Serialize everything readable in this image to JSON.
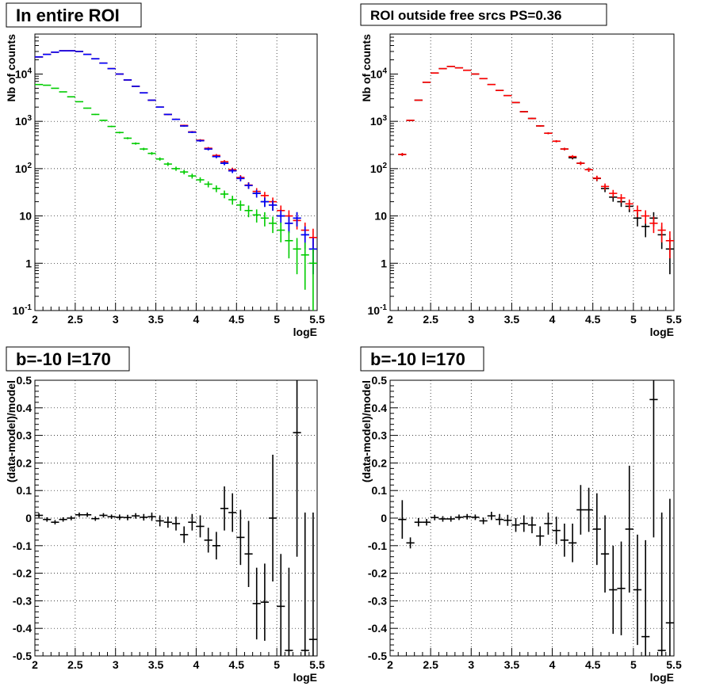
{
  "chart_data": [
    {
      "type": "scatter",
      "panel": "top-left",
      "title": "In entire ROI",
      "xlabel": "logE",
      "ylabel": "Nb of counts",
      "xlim": [
        2,
        5.5
      ],
      "ylim": [
        0.1,
        70000
      ],
      "log_y": true,
      "grid": true,
      "x_ticks": [
        "2",
        "2.5",
        "3",
        "3.5",
        "4",
        "4.5",
        "5",
        "5.5"
      ],
      "y_ticks": [
        "10^-1",
        "1",
        "10",
        "10^2",
        "10^3",
        "10^4"
      ],
      "x": [
        2.05,
        2.15,
        2.25,
        2.35,
        2.45,
        2.55,
        2.65,
        2.75,
        2.85,
        2.95,
        3.05,
        3.15,
        3.25,
        3.35,
        3.45,
        3.55,
        3.65,
        3.75,
        3.85,
        3.95,
        4.05,
        4.15,
        4.25,
        4.35,
        4.45,
        4.55,
        4.65,
        4.75,
        4.85,
        4.95,
        5.05,
        5.15,
        5.25,
        5.35,
        5.45
      ],
      "series": [
        {
          "color": "#000000",
          "values": [
            23000,
            26000,
            29000,
            31000,
            31000,
            30000,
            26000,
            21000,
            17000,
            13000,
            10000,
            7500,
            5500,
            4000,
            2800,
            2000,
            1400,
            1100,
            800,
            590,
            390,
            260,
            180,
            130,
            90,
            62,
            44,
            30,
            20,
            17,
            10,
            7,
            9,
            4,
            2
          ]
        },
        {
          "color": "#ff0000",
          "values": [
            23000,
            26000,
            29000,
            31000,
            31000,
            30000,
            26000,
            21000,
            17000,
            13000,
            10000,
            7500,
            5500,
            4000,
            2800,
            2000,
            1400,
            1100,
            820,
            600,
            400,
            270,
            190,
            140,
            95,
            65,
            45,
            33,
            27,
            20,
            13,
            10,
            8,
            5,
            3.5
          ]
        },
        {
          "color": "#0000ff",
          "values": [
            23000,
            26000,
            29000,
            31000,
            31000,
            30000,
            26000,
            21000,
            17000,
            13000,
            10000,
            7500,
            5500,
            4000,
            2800,
            2000,
            1400,
            1100,
            800,
            590,
            390,
            260,
            180,
            130,
            90,
            62,
            44,
            30,
            20,
            17,
            10,
            7,
            9,
            4,
            2
          ]
        },
        {
          "color": "#00cc00",
          "values": [
            6000,
            5800,
            5000,
            4200,
            3300,
            2600,
            1900,
            1400,
            1050,
            780,
            580,
            440,
            340,
            260,
            210,
            160,
            125,
            100,
            85,
            70,
            58,
            47,
            38,
            29,
            22,
            17,
            13,
            10.5,
            9,
            7,
            5,
            3,
            2,
            1.5,
            1
          ]
        }
      ]
    },
    {
      "type": "scatter",
      "panel": "top-right",
      "title": "ROI outside free srcs PS=0.36",
      "xlabel": "logE",
      "ylabel": "Nb of counts",
      "xlim": [
        2,
        5.5
      ],
      "ylim": [
        0.1,
        70000
      ],
      "log_y": true,
      "grid": true,
      "x_ticks": [
        "2",
        "2.5",
        "3",
        "3.5",
        "4",
        "4.5",
        "5",
        "5.5"
      ],
      "y_ticks": [
        "10^-1",
        "1",
        "10",
        "10^2",
        "10^3",
        "10^4"
      ],
      "x": [
        2.15,
        2.25,
        2.35,
        2.45,
        2.55,
        2.65,
        2.75,
        2.85,
        2.95,
        3.05,
        3.15,
        3.25,
        3.35,
        3.45,
        3.55,
        3.65,
        3.75,
        3.85,
        3.95,
        4.05,
        4.15,
        4.25,
        4.35,
        4.45,
        4.55,
        4.65,
        4.75,
        4.85,
        4.95,
        5.05,
        5.15,
        5.25,
        5.35,
        5.45
      ],
      "series": [
        {
          "color": "#000000",
          "values": [
            200,
            1050,
            2800,
            6700,
            10500,
            13000,
            14500,
            13500,
            12000,
            10000,
            8000,
            6000,
            4500,
            3500,
            2500,
            1600,
            1150,
            800,
            560,
            380,
            260,
            170,
            130,
            95,
            62,
            38,
            25,
            20,
            16,
            9,
            6,
            9,
            4,
            2
          ]
        },
        {
          "color": "#ff0000",
          "values": [
            200,
            1050,
            2800,
            6700,
            10500,
            13000,
            14500,
            13500,
            12000,
            10000,
            8000,
            6000,
            4500,
            3500,
            2500,
            1600,
            1150,
            800,
            560,
            380,
            260,
            180,
            130,
            95,
            63,
            42,
            30,
            24,
            18,
            13,
            10,
            7,
            5,
            3
          ]
        }
      ]
    },
    {
      "type": "scatter",
      "panel": "bottom-left",
      "title": "b=-10 l=170",
      "xlabel": "logE",
      "ylabel": "(data-model)/model",
      "xlim": [
        2,
        5.5
      ],
      "ylim": [
        -0.5,
        0.5
      ],
      "grid": true,
      "x_ticks": [
        "2",
        "2.5",
        "3",
        "3.5",
        "4",
        "4.5",
        "5",
        "5.5"
      ],
      "y_ticks": [
        "-0.5",
        "-0.4",
        "-0.3",
        "-0.2",
        "-0.1",
        "0",
        "0.1",
        "0.2",
        "0.3",
        "0.4",
        "0.5"
      ],
      "x": [
        2.05,
        2.15,
        2.25,
        2.35,
        2.45,
        2.55,
        2.65,
        2.75,
        2.85,
        2.95,
        3.05,
        3.15,
        3.25,
        3.35,
        3.45,
        3.55,
        3.65,
        3.75,
        3.85,
        3.95,
        4.05,
        4.15,
        4.25,
        4.35,
        4.45,
        4.55,
        4.65,
        4.75,
        4.85,
        4.95,
        5.05,
        5.15,
        5.25,
        5.35,
        5.45
      ],
      "values": [
        0.01,
        -0.005,
        -0.015,
        -0.005,
        0,
        0.012,
        0.012,
        -0.002,
        0.01,
        0.005,
        0.003,
        0.002,
        0.008,
        0.003,
        0.005,
        -0.01,
        -0.015,
        -0.02,
        -0.06,
        -0.015,
        -0.03,
        -0.08,
        -0.1,
        0.035,
        0.02,
        -0.07,
        -0.13,
        -0.31,
        -0.305,
        0,
        -0.32,
        -0.48,
        0.31,
        -0.48,
        -0.44
      ],
      "errors": [
        0.008,
        0.008,
        0.008,
        0.008,
        0.008,
        0.008,
        0.008,
        0.008,
        0.008,
        0.008,
        0.01,
        0.01,
        0.01,
        0.012,
        0.015,
        0.02,
        0.02,
        0.025,
        0.03,
        0.03,
        0.04,
        0.045,
        0.05,
        0.08,
        0.07,
        0.1,
        0.12,
        0.13,
        0.14,
        0.23,
        0.19,
        0.3,
        0.45,
        0.5,
        0.46
      ]
    },
    {
      "type": "scatter",
      "panel": "bottom-right",
      "title": "b=-10 l=170",
      "xlabel": "logE",
      "ylabel": "(data-model)/model",
      "xlim": [
        2,
        5.5
      ],
      "ylim": [
        -0.5,
        0.5
      ],
      "grid": true,
      "x_ticks": [
        "2",
        "2.5",
        "3",
        "3.5",
        "4",
        "4.5",
        "5",
        "5.5"
      ],
      "y_ticks": [
        "-0.5",
        "-0.4",
        "-0.3",
        "-0.2",
        "-0.1",
        "0",
        "0.1",
        "0.2",
        "0.3",
        "0.4",
        "0.5"
      ],
      "x": [
        2.15,
        2.25,
        2.35,
        2.45,
        2.55,
        2.65,
        2.75,
        2.85,
        2.95,
        3.05,
        3.15,
        3.25,
        3.35,
        3.45,
        3.55,
        3.65,
        3.75,
        3.85,
        3.95,
        4.05,
        4.15,
        4.25,
        4.35,
        4.45,
        4.55,
        4.65,
        4.75,
        4.85,
        4.95,
        5.05,
        5.15,
        5.25,
        5.35,
        5.45
      ],
      "values": [
        -0.005,
        -0.09,
        -0.015,
        -0.015,
        0.002,
        -0.003,
        -0.003,
        0.003,
        0.005,
        0.003,
        -0.01,
        0.008,
        -0.005,
        -0.008,
        -0.025,
        -0.02,
        -0.025,
        -0.065,
        -0.02,
        -0.045,
        -0.08,
        -0.09,
        0.03,
        0.03,
        -0.04,
        -0.13,
        -0.26,
        -0.255,
        -0.04,
        -0.26,
        -0.43,
        0.43,
        -0.48,
        -0.38
      ],
      "errors": [
        0.07,
        0.02,
        0.015,
        0.012,
        0.01,
        0.01,
        0.01,
        0.01,
        0.01,
        0.01,
        0.012,
        0.015,
        0.02,
        0.02,
        0.025,
        0.03,
        0.03,
        0.035,
        0.04,
        0.05,
        0.06,
        0.07,
        0.09,
        0.08,
        0.13,
        0.14,
        0.16,
        0.17,
        0.23,
        0.2,
        0.35,
        0.5,
        0.5,
        0.45
      ]
    }
  ]
}
